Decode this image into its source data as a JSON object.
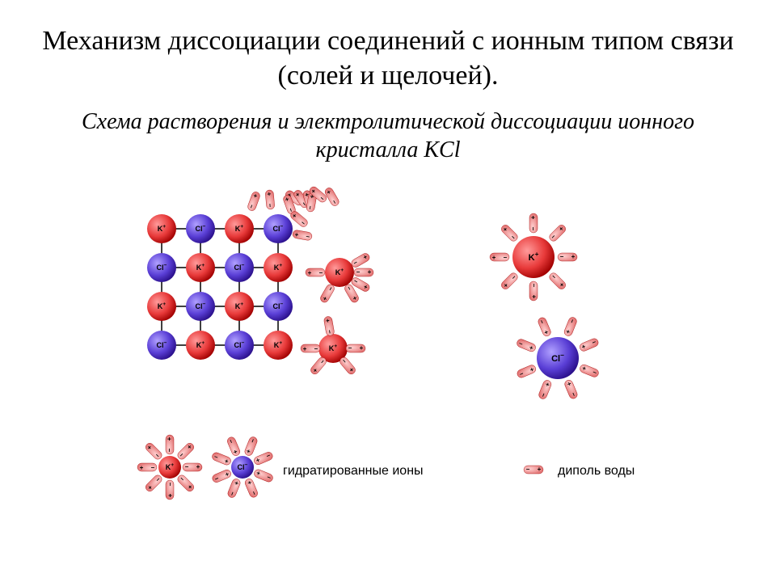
{
  "title": "Механизм диссоциации соединений с ионным типом связи (солей и щелочей).",
  "subtitle": "Схема растворения и электролитической диссоциации ионного кристалла KCl",
  "colors": {
    "background": "#ffffff",
    "text": "#000000",
    "k_fill": "#e83a3a",
    "k_light": "#ff9a9a",
    "k_dark": "#a00000",
    "cl_fill": "#5a3fd6",
    "cl_light": "#b0a0ff",
    "cl_dark": "#2a0f8a",
    "dipole_fill": "#e06a6a",
    "dipole_light": "#ffd0d0",
    "lattice_line": "#000000"
  },
  "labels": {
    "k": "K",
    "k_sup": "+",
    "cl": "Cl",
    "cl_sup": "−",
    "plus": "+",
    "minus": "−",
    "hydrated": "гидратированные ионы",
    "dipole": "диполь воды"
  },
  "diagram": {
    "type": "infographic",
    "ion_radius_small": 18,
    "ion_radius_large": 26,
    "lattice_spacing": 48,
    "lattice_rows": 4,
    "lattice_cols": 4,
    "dipole_length": 24,
    "dipole_width": 10
  }
}
